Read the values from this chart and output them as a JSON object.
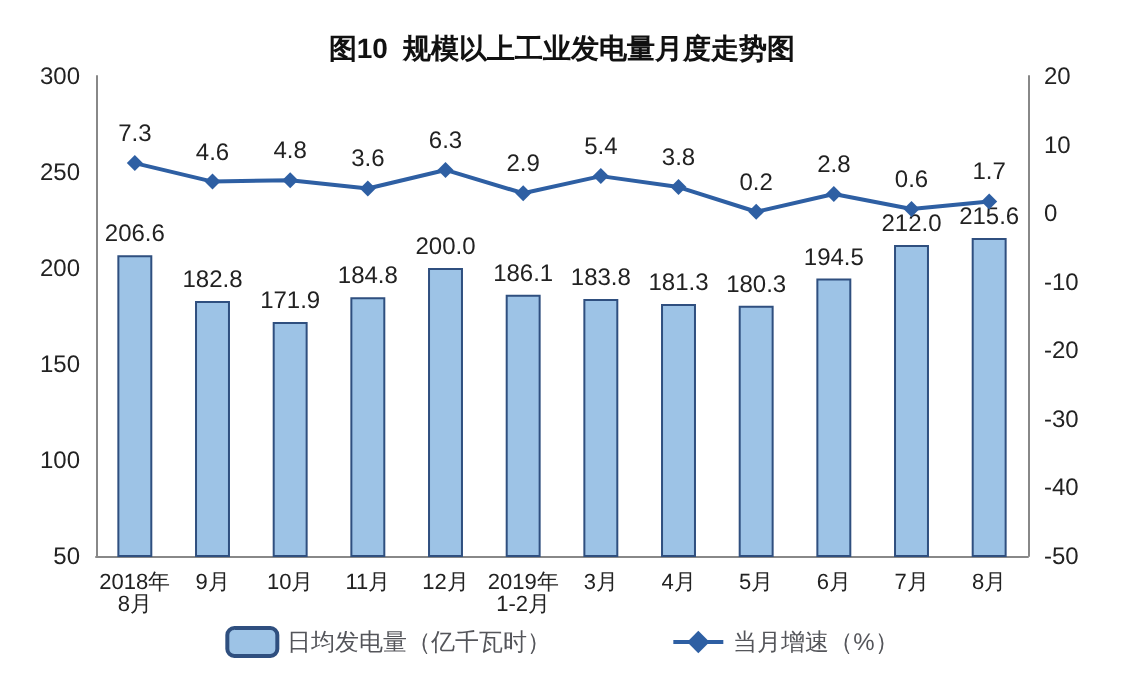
{
  "chart_data": {
    "type": "bar",
    "title": "图10  规模以上工业发电量月度走势图",
    "categories": [
      "2018年\n8月",
      "9月",
      "10月",
      "11月",
      "12月",
      "2019年\n1-2月",
      "3月",
      "4月",
      "5月",
      "6月",
      "7月",
      "8月"
    ],
    "series": [
      {
        "name": "日均发电量（亿千瓦时）",
        "color": "#9dc3e6",
        "values": [
          206.6,
          182.8,
          171.9,
          184.8,
          200.0,
          186.1,
          183.8,
          181.3,
          180.3,
          194.5,
          212.0,
          215.6
        ],
        "value_labels": [
          "206.6",
          "182.8",
          "171.9",
          "184.8",
          "200.0",
          "186.1",
          "183.8",
          "181.3",
          "180.3",
          "194.5",
          "212.0",
          "215.6"
        ]
      },
      {
        "name": "当月增速（%）",
        "type": "line",
        "axis": "y2",
        "color": "#2e5fa3",
        "marker": "diamond",
        "values": [
          7.3,
          4.6,
          4.8,
          3.6,
          6.3,
          2.9,
          5.4,
          3.8,
          0.2,
          2.8,
          0.6,
          1.7
        ],
        "value_labels": [
          "7.3",
          "4.6",
          "4.8",
          "3.6",
          "6.3",
          "2.9",
          "5.4",
          "3.8",
          "0.2",
          "2.8",
          "0.6",
          "1.7"
        ]
      }
    ],
    "ylim": [
      50,
      300
    ],
    "yticks": [
      50,
      100,
      150,
      200,
      250,
      300
    ],
    "y2lim": [
      -50,
      20
    ],
    "y2ticks": [
      -50,
      -40,
      -30,
      -20,
      -10,
      0,
      10,
      20
    ],
    "grid": false,
    "legend": "bottom"
  }
}
